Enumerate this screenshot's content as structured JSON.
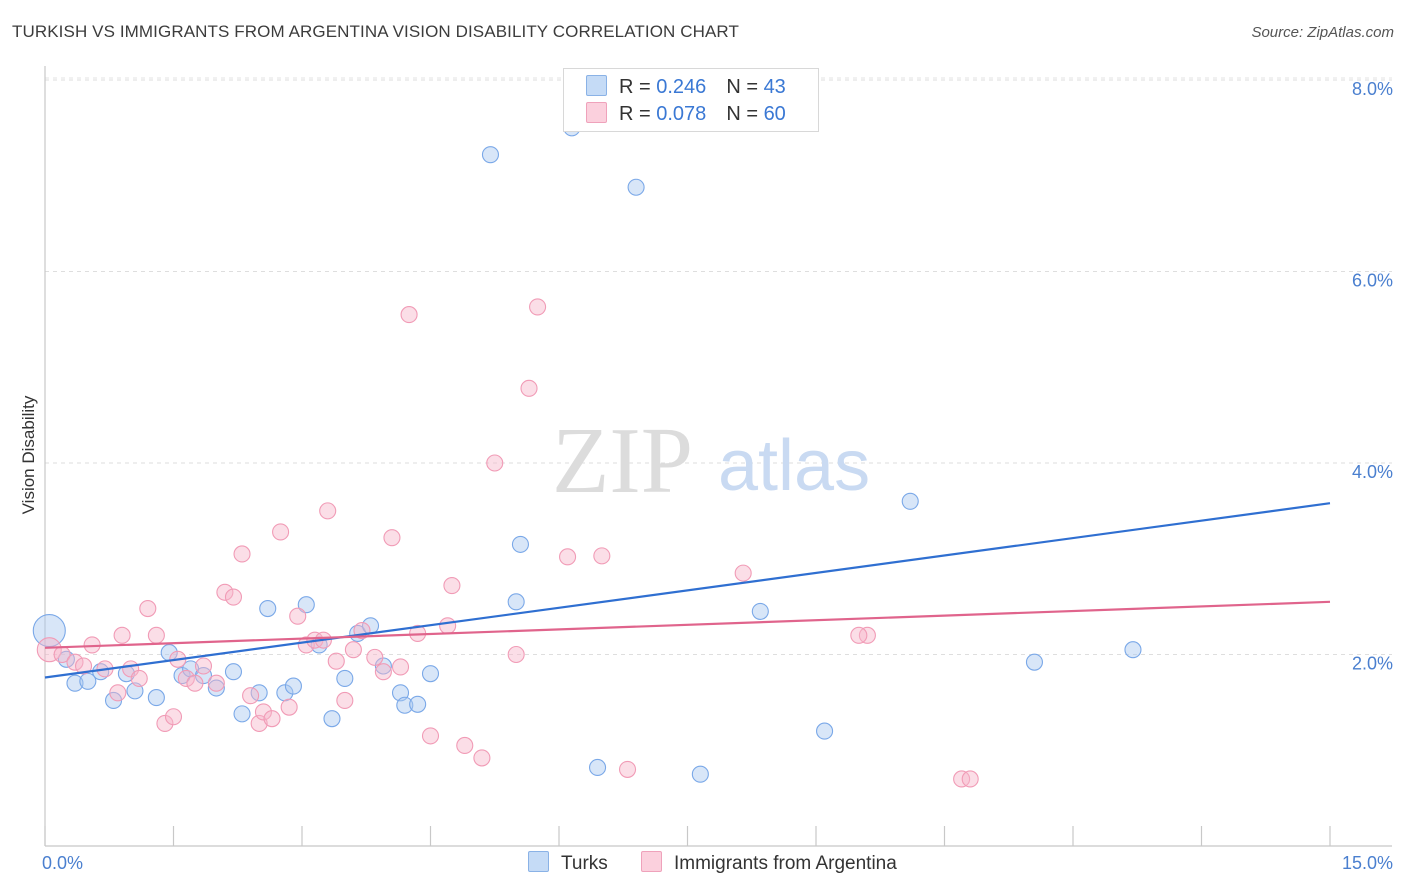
{
  "header": {
    "title": "TURKISH VS IMMIGRANTS FROM ARGENTINA VISION DISABILITY CORRELATION CHART",
    "source": "Source: ZipAtlas.com"
  },
  "watermark": {
    "zip": "ZIP",
    "atlas": "atlas"
  },
  "legend": {
    "r_label": "R = ",
    "n_label": "N = ",
    "rows": [
      {
        "r": "0.246",
        "n": "43",
        "color": "#a9c8f0"
      },
      {
        "r": "0.078",
        "n": "60",
        "color": "#f6b6ca"
      }
    ]
  },
  "bottom_legend": {
    "series1": "Turks",
    "series2": "Immigrants from Argentina"
  },
  "chart_data": {
    "type": "scatter",
    "title": "TURKISH VS IMMIGRANTS FROM ARGENTINA VISION DISABILITY CORRELATION CHART",
    "xlabel": "",
    "ylabel": "Vision Disability",
    "xlim": [
      0,
      15
    ],
    "ylim": [
      0,
      8.2
    ],
    "x_tick_labels": [
      "0.0%",
      "15.0%"
    ],
    "y_ticks": [
      2,
      4,
      6,
      8
    ],
    "y_tick_labels": [
      "2.0%",
      "4.0%",
      "6.0%",
      "8.0%"
    ],
    "grid": true,
    "series": [
      {
        "name": "Turks",
        "color": "#7aa8e8",
        "trend_color": "#2f6fd1",
        "trend": [
          [
            0,
            1.76
          ],
          [
            15,
            3.58
          ]
        ],
        "points": [
          [
            0.05,
            2.25
          ],
          [
            0.25,
            1.95
          ],
          [
            0.35,
            1.7
          ],
          [
            0.5,
            1.72
          ],
          [
            0.65,
            1.82
          ],
          [
            0.8,
            1.52
          ],
          [
            0.95,
            1.8
          ],
          [
            1.05,
            1.62
          ],
          [
            1.3,
            1.55
          ],
          [
            1.45,
            2.02
          ],
          [
            1.6,
            1.78
          ],
          [
            1.7,
            1.85
          ],
          [
            1.85,
            1.78
          ],
          [
            2.0,
            1.65
          ],
          [
            2.2,
            1.82
          ],
          [
            2.3,
            1.38
          ],
          [
            2.5,
            1.6
          ],
          [
            2.6,
            2.48
          ],
          [
            2.8,
            1.6
          ],
          [
            2.9,
            1.67
          ],
          [
            3.05,
            2.52
          ],
          [
            3.2,
            2.1
          ],
          [
            3.35,
            1.33
          ],
          [
            3.5,
            1.75
          ],
          [
            3.65,
            2.22
          ],
          [
            3.8,
            2.3
          ],
          [
            3.95,
            1.88
          ],
          [
            4.15,
            1.6
          ],
          [
            4.2,
            1.47
          ],
          [
            4.35,
            1.48
          ],
          [
            4.5,
            1.8
          ],
          [
            5.2,
            7.22
          ],
          [
            5.5,
            2.55
          ],
          [
            5.55,
            3.15
          ],
          [
            6.15,
            7.5
          ],
          [
            6.45,
            0.82
          ],
          [
            6.9,
            6.88
          ],
          [
            7.65,
            0.75
          ],
          [
            8.35,
            2.45
          ],
          [
            9.1,
            1.2
          ],
          [
            10.1,
            3.6
          ],
          [
            11.55,
            1.92
          ],
          [
            12.7,
            2.05
          ]
        ]
      },
      {
        "name": "Immigrants from Argentina",
        "color": "#f19bb6",
        "trend_color": "#e0648c",
        "trend": [
          [
            0,
            2.07
          ],
          [
            15,
            2.55
          ]
        ],
        "points": [
          [
            0.05,
            2.05
          ],
          [
            0.2,
            2.0
          ],
          [
            0.35,
            1.92
          ],
          [
            0.45,
            1.88
          ],
          [
            0.55,
            2.1
          ],
          [
            0.7,
            1.85
          ],
          [
            0.85,
            1.6
          ],
          [
            0.9,
            2.2
          ],
          [
            1.0,
            1.85
          ],
          [
            1.1,
            1.75
          ],
          [
            1.2,
            2.48
          ],
          [
            1.3,
            2.2
          ],
          [
            1.4,
            1.28
          ],
          [
            1.5,
            1.35
          ],
          [
            1.55,
            1.95
          ],
          [
            1.65,
            1.75
          ],
          [
            1.75,
            1.7
          ],
          [
            1.85,
            1.88
          ],
          [
            2.0,
            1.7
          ],
          [
            2.1,
            2.65
          ],
          [
            2.2,
            2.6
          ],
          [
            2.3,
            3.05
          ],
          [
            2.4,
            1.57
          ],
          [
            2.5,
            1.28
          ],
          [
            2.55,
            1.4
          ],
          [
            2.65,
            1.33
          ],
          [
            2.75,
            3.28
          ],
          [
            2.85,
            1.45
          ],
          [
            2.95,
            2.4
          ],
          [
            3.05,
            2.1
          ],
          [
            3.15,
            2.15
          ],
          [
            3.25,
            2.15
          ],
          [
            3.3,
            3.5
          ],
          [
            3.4,
            1.93
          ],
          [
            3.5,
            1.52
          ],
          [
            3.6,
            2.05
          ],
          [
            3.7,
            2.25
          ],
          [
            3.85,
            1.97
          ],
          [
            3.95,
            1.82
          ],
          [
            4.05,
            3.22
          ],
          [
            4.15,
            1.87
          ],
          [
            4.25,
            5.55
          ],
          [
            4.35,
            2.22
          ],
          [
            4.5,
            1.15
          ],
          [
            4.7,
            2.3
          ],
          [
            4.75,
            2.72
          ],
          [
            4.9,
            1.05
          ],
          [
            5.1,
            0.92
          ],
          [
            5.25,
            4.0
          ],
          [
            5.5,
            2.0
          ],
          [
            5.65,
            4.78
          ],
          [
            5.75,
            5.63
          ],
          [
            6.1,
            3.02
          ],
          [
            6.5,
            3.03
          ],
          [
            6.8,
            0.8
          ],
          [
            8.15,
            2.85
          ],
          [
            9.6,
            2.2
          ],
          [
            10.7,
            0.7
          ],
          [
            10.8,
            0.7
          ],
          [
            9.5,
            2.2
          ]
        ]
      }
    ]
  }
}
